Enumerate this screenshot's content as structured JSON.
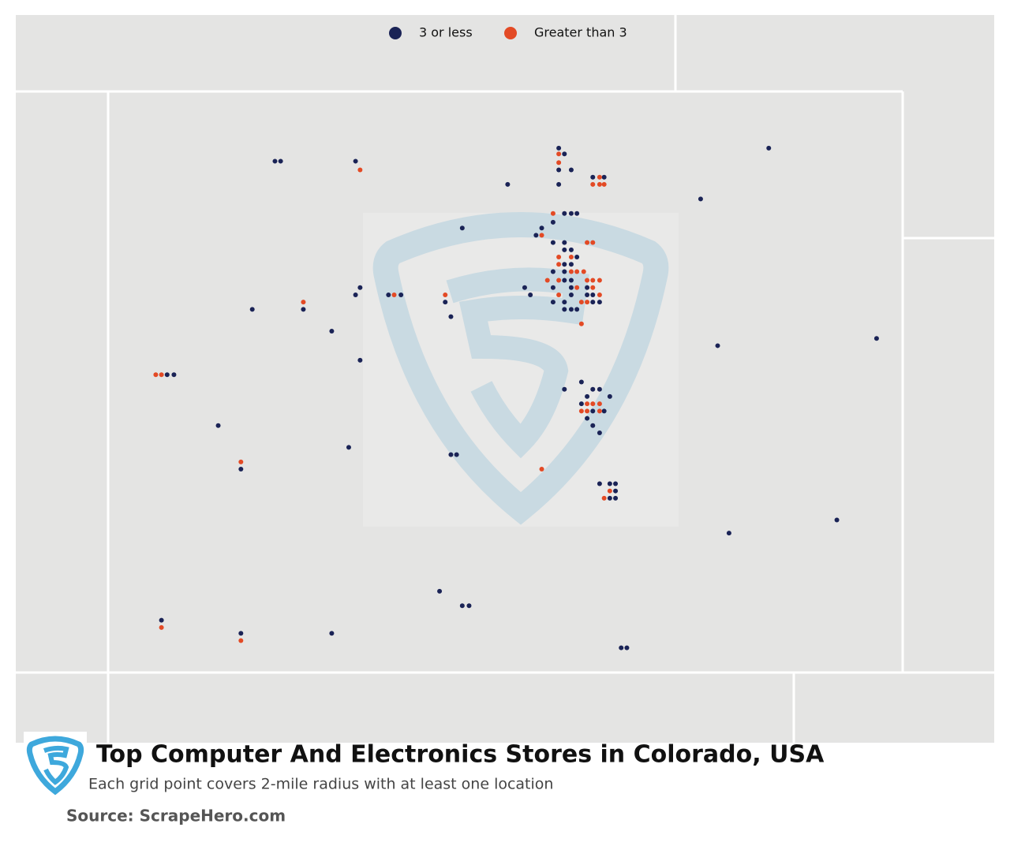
{
  "chart_data": {
    "type": "map",
    "title": "Top Computer And Electronics Stores in Colorado, USA",
    "subtitle": "Each grid point covers 2-mile radius with at least one location",
    "source": "Source: ScrapeHero.com",
    "xlim": [
      -109.05,
      -102.05
    ],
    "ylim": [
      37,
      41
    ],
    "series": [
      {
        "name": "3 or less",
        "color": "#1a2356",
        "points": [
          [
            -107.58,
            40.52
          ],
          [
            -107.53,
            40.52
          ],
          [
            -106.87,
            40.52
          ],
          [
            -105.08,
            40.61
          ],
          [
            -105.03,
            40.57
          ],
          [
            -105.08,
            40.46
          ],
          [
            -104.97,
            40.46
          ],
          [
            -105.08,
            40.36
          ],
          [
            -104.78,
            40.41
          ],
          [
            -104.68,
            40.41
          ],
          [
            -105.53,
            40.36
          ],
          [
            -103.23,
            40.61
          ],
          [
            -103.83,
            40.26
          ],
          [
            -105.03,
            40.16
          ],
          [
            -104.97,
            40.16
          ],
          [
            -104.92,
            40.16
          ],
          [
            -105.93,
            40.06
          ],
          [
            -105.23,
            40.06
          ],
          [
            -105.13,
            40.1
          ],
          [
            -105.28,
            40.01
          ],
          [
            -105.13,
            39.96
          ],
          [
            -105.03,
            39.96
          ],
          [
            -105.03,
            39.91
          ],
          [
            -104.97,
            39.91
          ],
          [
            -104.92,
            39.86
          ],
          [
            -105.03,
            39.81
          ],
          [
            -104.97,
            39.81
          ],
          [
            -105.13,
            39.76
          ],
          [
            -105.03,
            39.76
          ],
          [
            -105.03,
            39.7
          ],
          [
            -104.97,
            39.7
          ],
          [
            -105.13,
            39.65
          ],
          [
            -104.97,
            39.65
          ],
          [
            -104.83,
            39.65
          ],
          [
            -104.83,
            39.6
          ],
          [
            -104.78,
            39.6
          ],
          [
            -104.97,
            39.6
          ],
          [
            -105.13,
            39.55
          ],
          [
            -105.03,
            39.55
          ],
          [
            -104.78,
            39.55
          ],
          [
            -104.72,
            39.55
          ],
          [
            -105.03,
            39.5
          ],
          [
            -104.97,
            39.5
          ],
          [
            -104.92,
            39.5
          ],
          [
            -105.38,
            39.65
          ],
          [
            -105.33,
            39.6
          ],
          [
            -106.83,
            39.65
          ],
          [
            -106.87,
            39.6
          ],
          [
            -106.58,
            39.6
          ],
          [
            -106.47,
            39.6
          ],
          [
            -106.08,
            39.55
          ],
          [
            -106.03,
            39.45
          ],
          [
            -107.78,
            39.5
          ],
          [
            -107.33,
            39.5
          ],
          [
            -107.08,
            39.35
          ],
          [
            -106.83,
            39.15
          ],
          [
            -108.53,
            39.05
          ],
          [
            -108.47,
            39.05
          ],
          [
            -103.68,
            39.25
          ],
          [
            -102.28,
            39.3
          ],
          [
            -105.03,
            38.95
          ],
          [
            -104.88,
            39.0
          ],
          [
            -104.78,
            38.95
          ],
          [
            -104.72,
            38.95
          ],
          [
            -104.83,
            38.9
          ],
          [
            -104.63,
            38.9
          ],
          [
            -104.88,
            38.85
          ],
          [
            -104.78,
            38.8
          ],
          [
            -104.68,
            38.8
          ],
          [
            -104.83,
            38.75
          ],
          [
            -104.78,
            38.7
          ],
          [
            -104.72,
            38.65
          ],
          [
            -108.08,
            38.7
          ],
          [
            -106.93,
            38.55
          ],
          [
            -106.03,
            38.5
          ],
          [
            -105.98,
            38.5
          ],
          [
            -107.88,
            38.4
          ],
          [
            -104.72,
            38.3
          ],
          [
            -104.63,
            38.3
          ],
          [
            -104.58,
            38.3
          ],
          [
            -104.58,
            38.25
          ],
          [
            -104.63,
            38.2
          ],
          [
            -104.58,
            38.2
          ],
          [
            -102.63,
            38.05
          ],
          [
            -103.58,
            37.96
          ],
          [
            -106.13,
            37.56
          ],
          [
            -105.93,
            37.46
          ],
          [
            -105.87,
            37.46
          ],
          [
            -108.58,
            37.36
          ],
          [
            -107.88,
            37.27
          ],
          [
            -107.08,
            37.27
          ],
          [
            -104.53,
            37.17
          ],
          [
            -104.48,
            37.17
          ]
        ]
      },
      {
        "name": "Greater than 3",
        "color": "#e34a25",
        "points": [
          [
            -106.83,
            40.46
          ],
          [
            -104.72,
            40.41
          ],
          [
            -105.08,
            40.57
          ],
          [
            -105.08,
            40.51
          ],
          [
            -104.78,
            40.36
          ],
          [
            -104.72,
            40.36
          ],
          [
            -104.68,
            40.36
          ],
          [
            -105.13,
            40.16
          ],
          [
            -105.23,
            40.01
          ],
          [
            -104.83,
            39.96
          ],
          [
            -104.78,
            39.96
          ],
          [
            -105.08,
            39.86
          ],
          [
            -104.97,
            39.86
          ],
          [
            -105.08,
            39.81
          ],
          [
            -105.18,
            39.7
          ],
          [
            -105.08,
            39.7
          ],
          [
            -104.92,
            39.76
          ],
          [
            -104.86,
            39.76
          ],
          [
            -104.97,
            39.76
          ],
          [
            -104.83,
            39.7
          ],
          [
            -104.78,
            39.7
          ],
          [
            -104.72,
            39.7
          ],
          [
            -104.92,
            39.65
          ],
          [
            -104.78,
            39.65
          ],
          [
            -104.72,
            39.6
          ],
          [
            -105.08,
            39.6
          ],
          [
            -104.88,
            39.55
          ],
          [
            -104.83,
            39.55
          ],
          [
            -104.88,
            39.4
          ],
          [
            -106.53,
            39.6
          ],
          [
            -106.08,
            39.6
          ],
          [
            -107.33,
            39.55
          ],
          [
            -108.63,
            39.05
          ],
          [
            -108.58,
            39.05
          ],
          [
            -104.83,
            38.85
          ],
          [
            -104.78,
            38.85
          ],
          [
            -104.72,
            38.85
          ],
          [
            -104.88,
            38.8
          ],
          [
            -104.83,
            38.8
          ],
          [
            -104.72,
            38.8
          ],
          [
            -105.23,
            38.4
          ],
          [
            -104.63,
            38.25
          ],
          [
            -104.68,
            38.2
          ],
          [
            -107.88,
            38.45
          ],
          [
            -108.58,
            37.31
          ],
          [
            -107.88,
            37.22
          ]
        ]
      }
    ]
  }
}
